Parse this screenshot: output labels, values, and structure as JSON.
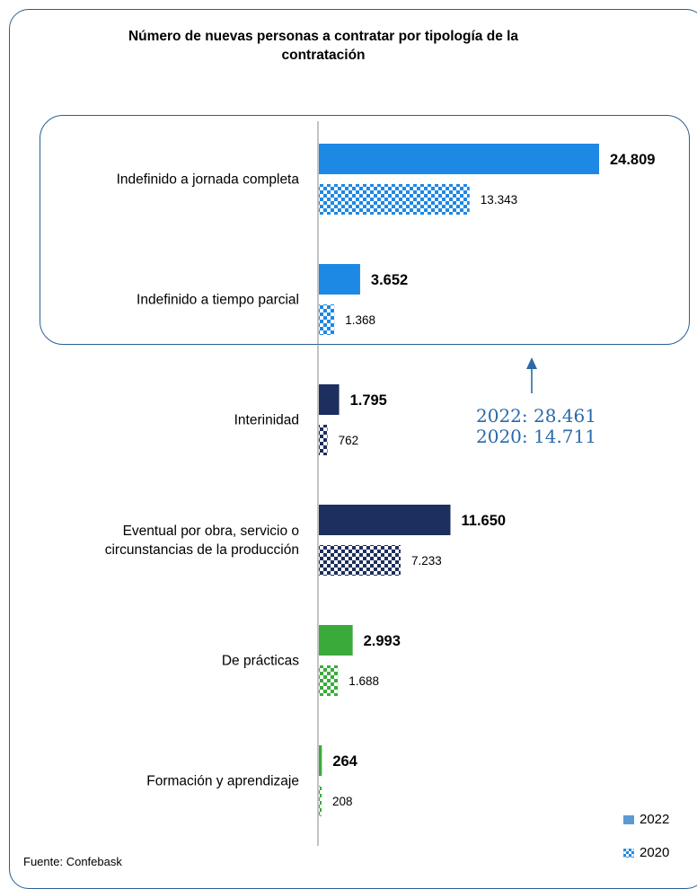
{
  "title_line1": "Número de nuevas personas a contratar por tipología de la",
  "title_line2": "contratación",
  "annotation_line1": "2022: 28.461",
  "annotation_line2": "2020: 14.711",
  "source": "Fuente: Confebask",
  "chart_data": {
    "type": "bar",
    "orientation": "horizontal",
    "title": "Número de nuevas personas a contratar por tipología de la contratación",
    "categories": [
      [
        "Indefinido a jornada completa"
      ],
      [
        "Indefinido a tiempo parcial"
      ],
      [
        "Interinidad"
      ],
      [
        "Eventual por obra, servicio o",
        "circunstancias de la producción"
      ],
      [
        "De prácticas"
      ],
      [
        "Formación y aprendizaje"
      ]
    ],
    "series": [
      {
        "name": "2022",
        "values": [
          24809,
          3652,
          1795,
          11650,
          2993,
          264
        ],
        "labels": [
          "24.809",
          "3.652",
          "1.795",
          "11.650",
          "2.993",
          "264"
        ]
      },
      {
        "name": "2020",
        "values": [
          13343,
          1368,
          762,
          7233,
          1688,
          208
        ],
        "labels": [
          "13.343",
          "1.368",
          "762",
          "7.233",
          "1.688",
          "208"
        ]
      }
    ],
    "category_colors": [
      "#1e88e5",
      "#1e88e5",
      "#1d2f5e",
      "#1d2f5e",
      "#3aab3a",
      "#3aab3a"
    ],
    "xlim": [
      0,
      24809
    ],
    "legend_position": "bottom-right",
    "grid": false
  }
}
